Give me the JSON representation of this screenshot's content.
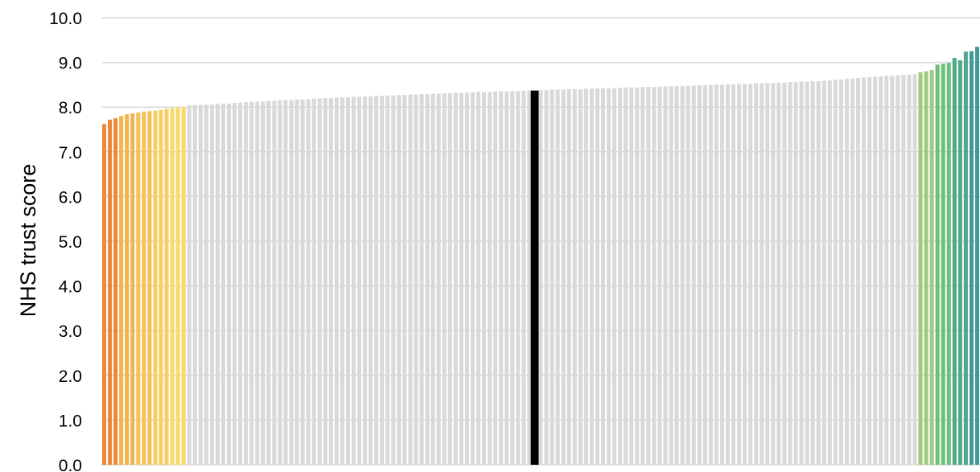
{
  "chart_data": {
    "type": "bar",
    "title": "",
    "xlabel": "",
    "ylabel": "NHS trust score",
    "ylim": [
      0,
      10
    ],
    "y_ticks": [
      "0.0",
      "1.0",
      "2.0",
      "3.0",
      "4.0",
      "5.0",
      "6.0",
      "7.0",
      "8.0",
      "9.0",
      "10.0"
    ],
    "grid": "horizontal",
    "legend": "none",
    "highlight_color": "#000000",
    "default_color": "#d9d9d9",
    "low_colors": [
      "#e88a3a",
      "#f2b44f",
      "#f4c25a",
      "#f7cf63",
      "#fad96b"
    ],
    "high_colors": [
      "#9dca7f",
      "#6ebf7a",
      "#52a88a",
      "#3f9a98"
    ],
    "values": [
      7.62,
      7.72,
      7.75,
      7.8,
      7.84,
      7.86,
      7.88,
      7.9,
      7.91,
      7.92,
      7.94,
      7.96,
      7.98,
      7.99,
      8.0,
      8.04,
      8.05,
      8.05,
      8.06,
      8.06,
      8.07,
      8.08,
      8.08,
      8.09,
      8.1,
      8.11,
      8.12,
      8.12,
      8.13,
      8.14,
      8.14,
      8.15,
      8.16,
      8.16,
      8.17,
      8.17,
      8.18,
      8.19,
      8.19,
      8.2,
      8.2,
      8.21,
      8.22,
      8.22,
      8.23,
      8.23,
      8.24,
      8.24,
      8.25,
      8.25,
      8.26,
      8.26,
      8.27,
      8.27,
      8.28,
      8.28,
      8.29,
      8.29,
      8.3,
      8.3,
      8.31,
      8.31,
      8.32,
      8.32,
      8.33,
      8.33,
      8.34,
      8.34,
      8.34,
      8.35,
      8.35,
      8.35,
      8.36,
      8.36,
      8.37,
      8.37,
      8.37,
      8.38,
      8.38,
      8.39,
      8.39,
      8.39,
      8.4,
      8.4,
      8.4,
      8.41,
      8.41,
      8.42,
      8.42,
      8.42,
      8.43,
      8.43,
      8.44,
      8.44,
      8.44,
      8.45,
      8.45,
      8.45,
      8.46,
      8.46,
      8.47,
      8.47,
      8.47,
      8.48,
      8.48,
      8.49,
      8.49,
      8.5,
      8.5,
      8.5,
      8.51,
      8.51,
      8.52,
      8.52,
      8.52,
      8.53,
      8.53,
      8.54,
      8.54,
      8.55,
      8.55,
      8.56,
      8.56,
      8.57,
      8.57,
      8.58,
      8.58,
      8.59,
      8.6,
      8.61,
      8.62,
      8.63,
      8.64,
      8.65,
      8.66,
      8.67,
      8.68,
      8.69,
      8.7,
      8.7,
      8.71,
      8.72,
      8.73,
      8.74,
      8.78,
      8.8,
      8.83,
      8.95,
      8.97,
      8.99,
      9.1,
      9.05,
      9.24,
      9.25,
      9.35
    ]
  }
}
